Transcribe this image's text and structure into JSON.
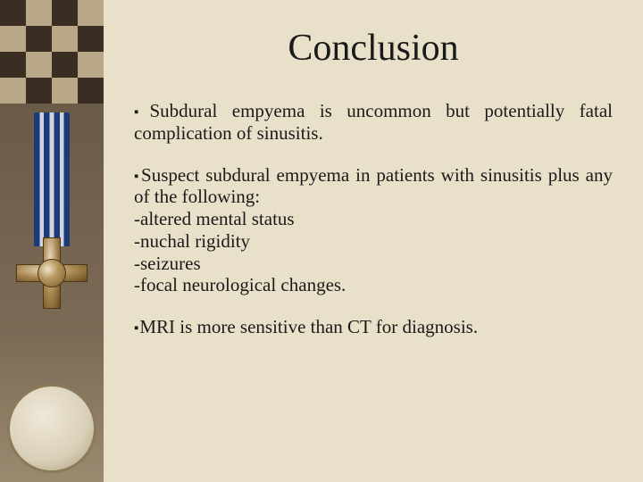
{
  "colors": {
    "content_bg": "#e8e0c8",
    "text": "#1a1a1a",
    "checker_dark": "#3a2e22",
    "checker_light": "#b8a888"
  },
  "title": "Conclusion",
  "title_fontsize": 42,
  "body_fontsize": 21,
  "bullets": [
    {
      "text": "Subdural empyema is uncommon but potentially fatal complication of sinusitis."
    },
    {
      "text": "Suspect subdural empyema in patients with sinusitis plus any of the following:",
      "subitems": [
        "-altered mental status",
        "-nuchal rigidity",
        "-seizures",
        "-focal neurological changes."
      ]
    },
    {
      "text": "MRI is more sensitive than CT for diagnosis."
    }
  ],
  "bullet_marker": "▪"
}
